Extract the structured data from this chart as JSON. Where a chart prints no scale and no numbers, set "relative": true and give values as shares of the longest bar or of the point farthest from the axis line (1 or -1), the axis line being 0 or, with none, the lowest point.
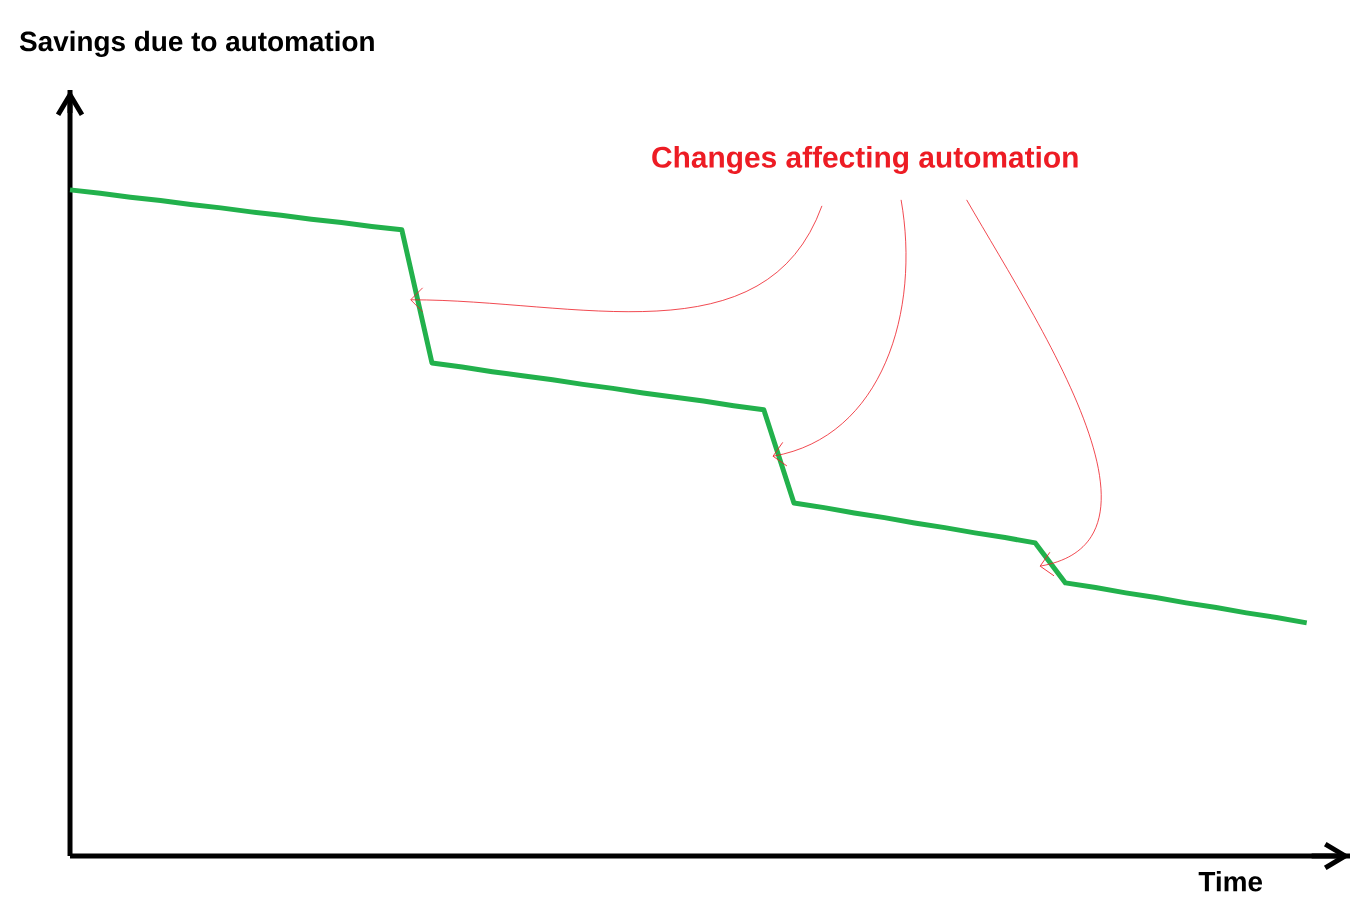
{
  "chart_data": {
    "type": "line",
    "relative": true,
    "xlabel": "Time",
    "ylabel": "Savings due to automation",
    "categories": [
      null,
      null,
      null,
      null,
      null,
      null,
      null,
      null,
      null,
      null,
      null,
      null,
      null,
      null,
      null,
      null,
      null,
      null,
      null,
      null,
      null,
      null,
      null,
      null,
      null,
      null,
      null,
      null,
      null,
      null,
      null,
      null,
      null,
      null,
      null,
      null,
      null,
      null,
      null,
      null,
      null,
      null
    ],
    "series": [
      {
        "color": "#22b14c",
        "values": [
          1.0,
          0.995,
          0.989,
          0.984,
          0.978,
          0.973,
          0.967,
          0.962,
          0.956,
          0.951,
          0.945,
          0.94,
          0.74,
          0.734,
          0.727,
          0.721,
          0.715,
          0.708,
          0.702,
          0.695,
          0.689,
          0.683,
          0.676,
          0.67,
          0.53,
          0.523,
          0.515,
          0.508,
          0.5,
          0.493,
          0.485,
          0.478,
          0.47,
          0.41,
          0.403,
          0.395,
          0.388,
          0.38,
          0.373,
          0.365,
          0.358,
          0.35
        ]
      }
    ],
    "annotations": [
      "Changes affecting automation"
    ]
  }
}
